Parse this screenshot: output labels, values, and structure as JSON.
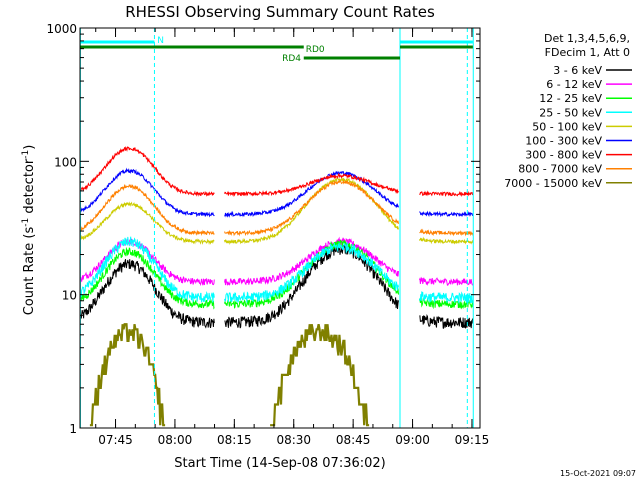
{
  "chart_data": {
    "type": "line",
    "title": "RHESSI Observing Summary Count Rates",
    "xlabel": "Start Time (14-Sep-08 07:36:02)",
    "ylabel_main": "Count Rate (s",
    "ylabel_sup1": "-1",
    "ylabel_mid": " detector",
    "ylabel_sup2": "-1",
    "ylabel_end": ")",
    "footer_date": "15-Oct-2021 09:07",
    "y_scale": "log",
    "ylim": [
      1,
      1000
    ],
    "xlim_minutes": [
      0,
      101
    ],
    "y_ticks": [
      {
        "value": 1,
        "label": "1"
      },
      {
        "value": 10,
        "label": "10"
      },
      {
        "value": 100,
        "label": "100"
      },
      {
        "value": 1000,
        "label": "1000"
      }
    ],
    "x_ticks": [
      {
        "minute": 8.97,
        "label": "07:45"
      },
      {
        "minute": 23.97,
        "label": "08:00"
      },
      {
        "minute": 38.97,
        "label": "08:15"
      },
      {
        "minute": 53.97,
        "label": "08:30"
      },
      {
        "minute": 68.97,
        "label": "08:45"
      },
      {
        "minute": 83.97,
        "label": "09:00"
      },
      {
        "minute": 98.97,
        "label": "09:15"
      }
    ],
    "legend_header": [
      "Det 1,3,4,5,6,9,",
      "FDecim 1, Att 0"
    ],
    "series": [
      {
        "name": "3 - 6 keV",
        "color": "#000000"
      },
      {
        "name": "6 - 12 keV",
        "color": "#ff00ff"
      },
      {
        "name": "12 - 25 keV",
        "color": "#00ff00"
      },
      {
        "name": "25 - 50 keV",
        "color": "#00ffff"
      },
      {
        "name": "50 - 100 keV",
        "color": "#cccc00"
      },
      {
        "name": "100 - 300 keV",
        "color": "#0000ff"
      },
      {
        "name": "300 - 800 keV",
        "color": "#ff0000"
      },
      {
        "name": "800 - 7000 keV",
        "color": "#ff8000"
      },
      {
        "name": "7000 - 15000 keV",
        "color": "#808000"
      }
    ],
    "flags": [
      {
        "label": "N",
        "color": "#00ffff"
      },
      {
        "label": "RD0",
        "color": "#008000"
      },
      {
        "label": "RD4",
        "color": "#008000"
      }
    ]
  }
}
